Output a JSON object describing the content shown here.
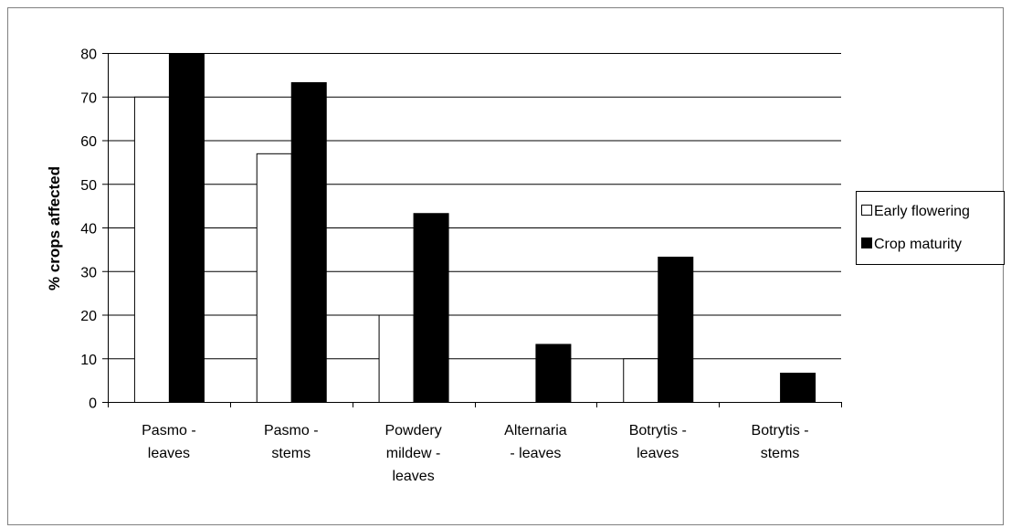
{
  "chart_data": {
    "type": "bar",
    "title": "",
    "xlabel": "",
    "ylabel": "% crops affected",
    "ylim": [
      0,
      80
    ],
    "yticks": [
      0,
      10,
      20,
      30,
      40,
      50,
      60,
      70,
      80
    ],
    "grid": true,
    "legend_position": "right",
    "categories": [
      [
        "Pasmo -",
        "leaves"
      ],
      [
        "Pasmo -",
        "stems"
      ],
      [
        "Powdery",
        "mildew -",
        "leaves"
      ],
      [
        "Alternaria",
        "- leaves"
      ],
      [
        "Botrytis -",
        "leaves"
      ],
      [
        "Botrytis -",
        "stems"
      ]
    ],
    "series": [
      {
        "name": "Early flowering",
        "color": "#ffffff",
        "values": [
          70,
          57,
          20,
          0,
          10,
          0
        ]
      },
      {
        "name": "Crop maturity",
        "color": "#000000",
        "values": [
          80,
          73.3,
          43.3,
          13.3,
          33.3,
          6.7
        ]
      }
    ]
  }
}
